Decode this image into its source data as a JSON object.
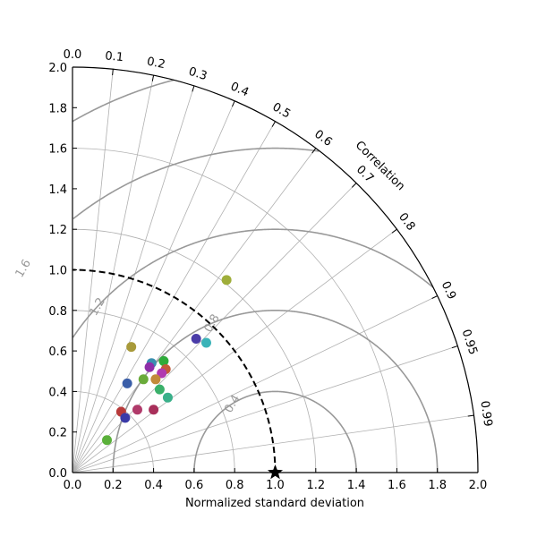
{
  "chart_data": {
    "type": "scatter",
    "subtype": "taylor-diagram",
    "xlabel": "Normalized standard deviation",
    "corr_axis_label": "Correlation",
    "std_range": [
      0,
      2.0
    ],
    "std_ticks": [
      "0.0",
      "0.2",
      "0.4",
      "0.6",
      "0.8",
      "1.0",
      "1.2",
      "1.4",
      "1.6",
      "1.8",
      "2.0"
    ],
    "corr_ticks": [
      {
        "value": 0.0,
        "label": "0.0"
      },
      {
        "value": 0.1,
        "label": "0.1"
      },
      {
        "value": 0.2,
        "label": "0.2"
      },
      {
        "value": 0.3,
        "label": "0.3"
      },
      {
        "value": 0.4,
        "label": "0.4"
      },
      {
        "value": 0.5,
        "label": "0.5"
      },
      {
        "value": 0.6,
        "label": "0.6"
      },
      {
        "value": 0.7,
        "label": "0.7"
      },
      {
        "value": 0.8,
        "label": "0.8"
      },
      {
        "value": 0.9,
        "label": "0.9"
      },
      {
        "value": 0.95,
        "label": "0.95"
      },
      {
        "value": 0.99,
        "label": "0.99"
      }
    ],
    "std_arcs": [
      0.4,
      0.8,
      1.2,
      1.6,
      2.0
    ],
    "rms_contours": [
      0.4,
      0.8,
      1.2,
      1.6,
      2.0
    ],
    "rms_labels": [
      {
        "value": 0.4,
        "label": "0.4"
      },
      {
        "value": 0.8,
        "label": "0.8"
      },
      {
        "value": 1.2,
        "label": "1.2"
      },
      {
        "value": 1.6,
        "label": "1.6"
      },
      {
        "value": 2.0,
        "label": "2.0"
      }
    ],
    "reference": {
      "std": 1.0,
      "corr": 1.0
    },
    "reference_arc": 1.0,
    "grid": true,
    "colors": {
      "grid": "#b0b0b0",
      "rms": "#999999",
      "reference_arc": "#000000",
      "reference_marker": "#000000"
    },
    "points": [
      {
        "x": 0.76,
        "y": 0.95,
        "color": "#9fae3a"
      },
      {
        "x": 0.61,
        "y": 0.66,
        "color": "#4a3ca8"
      },
      {
        "x": 0.66,
        "y": 0.64,
        "color": "#3ab3b8"
      },
      {
        "x": 0.29,
        "y": 0.62,
        "color": "#a89a3a"
      },
      {
        "x": 0.45,
        "y": 0.55,
        "color": "#2eab3a"
      },
      {
        "x": 0.39,
        "y": 0.54,
        "color": "#3a8fb0"
      },
      {
        "x": 0.38,
        "y": 0.52,
        "color": "#8e2fa8"
      },
      {
        "x": 0.46,
        "y": 0.51,
        "color": "#c25a3a"
      },
      {
        "x": 0.44,
        "y": 0.49,
        "color": "#b03ab0"
      },
      {
        "x": 0.35,
        "y": 0.46,
        "color": "#6aab3a"
      },
      {
        "x": 0.41,
        "y": 0.46,
        "color": "#c28a3a"
      },
      {
        "x": 0.27,
        "y": 0.44,
        "color": "#3a5ea8"
      },
      {
        "x": 0.43,
        "y": 0.41,
        "color": "#3ab06a"
      },
      {
        "x": 0.47,
        "y": 0.37,
        "color": "#3ab08a"
      },
      {
        "x": 0.32,
        "y": 0.31,
        "color": "#b03a6a"
      },
      {
        "x": 0.4,
        "y": 0.31,
        "color": "#a82f5a"
      },
      {
        "x": 0.24,
        "y": 0.3,
        "color": "#b83a3a"
      },
      {
        "x": 0.26,
        "y": 0.27,
        "color": "#3a3aa8"
      },
      {
        "x": 0.17,
        "y": 0.16,
        "color": "#5ab03a"
      }
    ]
  }
}
